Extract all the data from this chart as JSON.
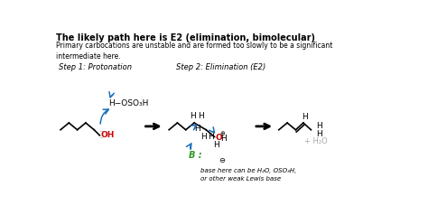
{
  "title": "The likely path here is E2 (elimination, bimolecular)",
  "subtitle": "Primary carbocations are unstable and are formed too slowly to be a significant\nintermediate here.",
  "step1_label": "Step 1: Protonation",
  "step2_label": "Step 2: Elimination (E2)",
  "reagent": "H−OSO₃H",
  "base_label": "B :",
  "base_note_line1": "base here can be H₂O, OSO₃H,",
  "base_note_line2": "or other weak Lewis base",
  "product_label": "+ H₂O",
  "bg_color": "#ffffff",
  "text_color": "#000000",
  "arrow_color": "#1a6fbb",
  "green_color": "#2d9b27",
  "red_color": "#cc0000",
  "gray_color": "#aaaaaa",
  "title_fontsize": 7.0,
  "body_fontsize": 5.5,
  "label_fontsize": 6.0,
  "chem_fontsize": 6.5
}
